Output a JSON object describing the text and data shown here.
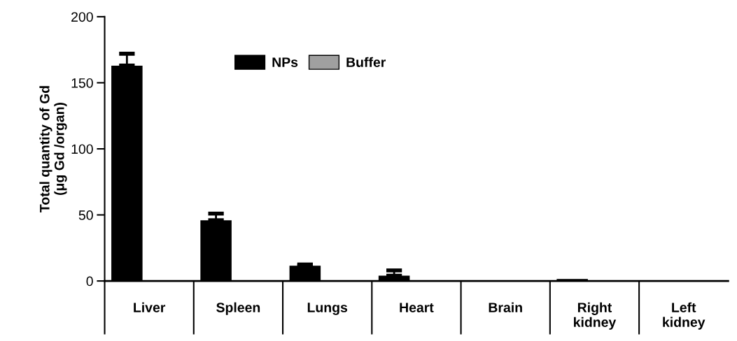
{
  "chart_data": {
    "type": "bar",
    "ylabel": "Total quantity of Gd\n(μg Gd /organ)",
    "categories": [
      "Liver",
      "Spleen",
      "Lungs",
      "Heart",
      "Brain",
      "Right\nkidney",
      "Left\nkidney"
    ],
    "series": [
      {
        "name": "NPs",
        "color": "#000000",
        "values": [
          163,
          46,
          11.5,
          4,
          0,
          1.5,
          0
        ],
        "errors": [
          9,
          5,
          1,
          4,
          null,
          null,
          null
        ]
      },
      {
        "name": "Buffer",
        "color": "#a0a0a0",
        "values": [
          0,
          0,
          0,
          0,
          0,
          0,
          0
        ]
      }
    ],
    "ylim": [
      0,
      200
    ],
    "yticks": [
      0,
      50,
      100,
      150,
      200
    ],
    "grid": false,
    "legend": "top"
  }
}
